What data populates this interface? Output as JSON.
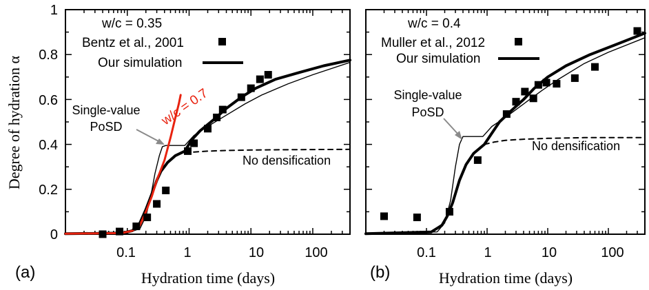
{
  "figure": {
    "y_axis_label": "Degree of hydration α",
    "x_axis_label": "Hydration time (days)"
  },
  "chart_data": [
    {
      "type": "scatter",
      "panel_label": "(a)",
      "xlabel": "Hydration time (days)",
      "ylabel": "Degree of hydration α",
      "xscale": "log",
      "xlim": [
        0.01,
        400
      ],
      "ylim": [
        0,
        1
      ],
      "x_tick_labels": [
        "0.1",
        "1",
        "10",
        "100"
      ],
      "y_tick_labels": [
        "0",
        "0.2",
        "0.4",
        "0.6",
        "0.8",
        "1"
      ],
      "wc_label": "w/c = 0.35",
      "legend": {
        "data_label": "Bentz et al., 2001",
        "sim_label": "Our simulation",
        "position": "top-left"
      },
      "annotations": {
        "psd": [
          "Single-value",
          "PoSD"
        ],
        "red_curve": "w/c = 0.7",
        "no_densification": "No densification"
      },
      "series": [
        {
          "name": "Bentz et al., 2001",
          "kind": "markers",
          "points": [
            [
              0.04,
              0.0
            ],
            [
              0.075,
              0.012
            ],
            [
              0.14,
              0.035
            ],
            [
              0.21,
              0.075
            ],
            [
              0.3,
              0.135
            ],
            [
              0.42,
              0.195
            ],
            [
              0.95,
              0.37
            ],
            [
              1.2,
              0.405
            ],
            [
              2.0,
              0.47
            ],
            [
              2.8,
              0.52
            ],
            [
              3.5,
              0.555
            ],
            [
              7.0,
              0.61
            ],
            [
              10,
              0.65
            ],
            [
              14,
              0.69
            ],
            [
              19,
              0.71
            ]
          ]
        },
        {
          "name": "Our simulation",
          "kind": "thick",
          "points": [
            [
              0.01,
              0.002
            ],
            [
              0.08,
              0.005
            ],
            [
              0.12,
              0.015
            ],
            [
              0.16,
              0.05
            ],
            [
              0.2,
              0.11
            ],
            [
              0.25,
              0.18
            ],
            [
              0.3,
              0.24
            ],
            [
              0.35,
              0.28
            ],
            [
              0.45,
              0.32
            ],
            [
              0.6,
              0.35
            ],
            [
              0.85,
              0.37
            ],
            [
              1.1,
              0.42
            ],
            [
              1.5,
              0.46
            ],
            [
              2.5,
              0.51
            ],
            [
              4,
              0.56
            ],
            [
              7,
              0.61
            ],
            [
              12,
              0.65
            ],
            [
              25,
              0.69
            ],
            [
              60,
              0.72
            ],
            [
              150,
              0.75
            ],
            [
              400,
              0.775
            ]
          ]
        },
        {
          "name": "Single-value PoSD",
          "kind": "thin",
          "points": [
            [
              0.01,
              0.002
            ],
            [
              0.1,
              0.005
            ],
            [
              0.16,
              0.025
            ],
            [
              0.2,
              0.08
            ],
            [
              0.24,
              0.17
            ],
            [
              0.28,
              0.27
            ],
            [
              0.33,
              0.35
            ],
            [
              0.37,
              0.39
            ],
            [
              0.42,
              0.395
            ],
            [
              0.85,
              0.395
            ],
            [
              1.2,
              0.44
            ],
            [
              2,
              0.48
            ],
            [
              4,
              0.53
            ],
            [
              8,
              0.58
            ],
            [
              15,
              0.62
            ],
            [
              40,
              0.67
            ],
            [
              100,
              0.71
            ],
            [
              400,
              0.765
            ]
          ]
        },
        {
          "name": "No densification",
          "kind": "dashed",
          "points": [
            [
              0.85,
              0.362
            ],
            [
              1.2,
              0.366
            ],
            [
              2,
              0.37
            ],
            [
              4,
              0.373
            ],
            [
              10,
              0.375
            ],
            [
              30,
              0.376
            ],
            [
              100,
              0.377
            ],
            [
              400,
              0.378
            ]
          ]
        },
        {
          "name": "w/c = 0.7",
          "kind": "red",
          "points": [
            [
              0.01,
              0.002
            ],
            [
              0.08,
              0.005
            ],
            [
              0.12,
              0.015
            ],
            [
              0.16,
              0.04
            ],
            [
              0.2,
              0.1
            ],
            [
              0.25,
              0.17
            ],
            [
              0.3,
              0.24
            ],
            [
              0.4,
              0.33
            ],
            [
              0.5,
              0.43
            ],
            [
              0.6,
              0.52
            ],
            [
              0.68,
              0.58
            ],
            [
              0.73,
              0.62
            ]
          ]
        }
      ]
    },
    {
      "type": "scatter",
      "panel_label": "(b)",
      "xlabel": "Hydration time (days)",
      "xscale": "log",
      "xlim": [
        0.01,
        400
      ],
      "ylim": [
        0,
        1
      ],
      "x_tick_labels": [
        "0.1",
        "1",
        "10",
        "100"
      ],
      "wc_label": "w/c = 0.4",
      "legend": {
        "data_label": "Muller et al., 2012",
        "sim_label": "Our simulation",
        "position": "top-left"
      },
      "annotations": {
        "psd": [
          "Single-value",
          "PoSD"
        ],
        "no_densification": "No densification"
      },
      "series": [
        {
          "name": "Muller et al., 2012",
          "kind": "markers",
          "points": [
            [
              0.02,
              0.08
            ],
            [
              0.07,
              0.075
            ],
            [
              0.24,
              0.1
            ],
            [
              0.7,
              0.33
            ],
            [
              2.1,
              0.535
            ],
            [
              3.0,
              0.59
            ],
            [
              4.2,
              0.635
            ],
            [
              5.8,
              0.605
            ],
            [
              7,
              0.665
            ],
            [
              9.5,
              0.675
            ],
            [
              14,
              0.67
            ],
            [
              28,
              0.695
            ],
            [
              60,
              0.745
            ],
            [
              300,
              0.905
            ]
          ]
        },
        {
          "name": "Our simulation",
          "kind": "thick",
          "points": [
            [
              0.01,
              0.002
            ],
            [
              0.12,
              0.01
            ],
            [
              0.18,
              0.04
            ],
            [
              0.22,
              0.08
            ],
            [
              0.27,
              0.14
            ],
            [
              0.35,
              0.24
            ],
            [
              0.45,
              0.31
            ],
            [
              0.6,
              0.36
            ],
            [
              0.9,
              0.4
            ],
            [
              1.2,
              0.45
            ],
            [
              1.6,
              0.5
            ],
            [
              2.5,
              0.55
            ],
            [
              4,
              0.6
            ],
            [
              6,
              0.65
            ],
            [
              10,
              0.7
            ],
            [
              20,
              0.75
            ],
            [
              50,
              0.8
            ],
            [
              120,
              0.84
            ],
            [
              400,
              0.895
            ]
          ]
        },
        {
          "name": "Single-value PoSD",
          "kind": "thin",
          "points": [
            [
              0.01,
              0.002
            ],
            [
              0.15,
              0.01
            ],
            [
              0.2,
              0.05
            ],
            [
              0.25,
              0.15
            ],
            [
              0.3,
              0.3
            ],
            [
              0.35,
              0.4
            ],
            [
              0.4,
              0.435
            ],
            [
              0.85,
              0.435
            ],
            [
              1.2,
              0.48
            ],
            [
              2,
              0.52
            ],
            [
              4,
              0.58
            ],
            [
              8,
              0.64
            ],
            [
              15,
              0.69
            ],
            [
              40,
              0.76
            ],
            [
              100,
              0.81
            ],
            [
              400,
              0.875
            ]
          ]
        },
        {
          "name": "No densification",
          "kind": "dashed",
          "points": [
            [
              0.9,
              0.4
            ],
            [
              1.3,
              0.41
            ],
            [
              2,
              0.418
            ],
            [
              4,
              0.423
            ],
            [
              10,
              0.427
            ],
            [
              40,
              0.43
            ],
            [
              150,
              0.43
            ],
            [
              400,
              0.43
            ]
          ]
        }
      ]
    }
  ]
}
